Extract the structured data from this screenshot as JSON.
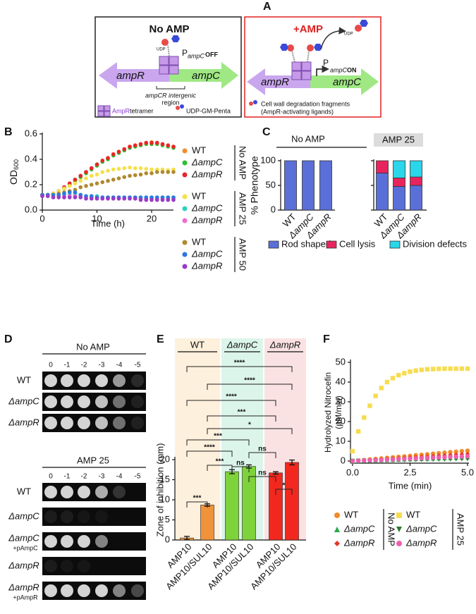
{
  "panel_labels": [
    "A",
    "B",
    "C",
    "D",
    "E",
    "F"
  ],
  "diagram": {
    "left": {
      "title": "No AMP",
      "gene_r": "ampR",
      "gene_c": "ampC",
      "promoter": "P",
      "promoter_sub": "ampC",
      "state": "OFF",
      "udp": "UDP",
      "region": "ampCR intergenic",
      "region2": "region"
    },
    "right": {
      "title": "+AMP",
      "gene_r": "ampR",
      "gene_c": "ampC",
      "promoter": "P",
      "promoter_sub": "ampC",
      "state": "ON",
      "udp": "UDP"
    },
    "legend": {
      "tetramer_name": "AmpR",
      "tetramer": "tetramer",
      "ligand": "UDP-GM-Penta",
      "fragments": "Cell wall degradation fragments",
      "fragments2": "(AmpR-activating ligands)"
    }
  },
  "spot_assay": {
    "top": {
      "title": "No AMP",
      "dilutions": [
        "0",
        "-1",
        "-2",
        "-3",
        "-4",
        "-5"
      ],
      "rows": [
        {
          "name": "WT"
        },
        {
          "name": "ΔampC"
        },
        {
          "name": "ΔampR"
        }
      ]
    },
    "bottom": {
      "title": "AMP 25",
      "dilutions": [
        "0",
        "-1",
        "-2",
        "-3",
        "-4",
        "-5"
      ],
      "rows": [
        {
          "name": "WT"
        },
        {
          "name": "ΔampC"
        },
        {
          "name": "ΔampC",
          "note": "+pAmpC"
        },
        {
          "name": "ΔampR"
        },
        {
          "name": "ΔampR",
          "note": "+pAmpR"
        }
      ]
    }
  },
  "chart_data": [
    {
      "type": "scatter",
      "x_label": "Time (h)",
      "y_label": {
        "main": "OD",
        "sub": "600"
      },
      "xlim": [
        0,
        24
      ],
      "xticks": [
        0,
        10,
        20
      ],
      "ylim": [
        0,
        0.6
      ],
      "yticks": [
        {
          "value": 0,
          "label": "0.0"
        },
        0.2,
        0.4,
        0.6
      ],
      "legend_groups": [
        "No AMP",
        "AMP 25",
        "AMP 50"
      ],
      "x": [
        0,
        1,
        2,
        3,
        4,
        5,
        6,
        7,
        8,
        9,
        10,
        11,
        12,
        13,
        14,
        15,
        16,
        17,
        18,
        19,
        20,
        21,
        22,
        23,
        24
      ],
      "series": [
        {
          "name": "WT",
          "color": "#f28c28",
          "values": [
            0.12,
            0.12,
            0.13,
            0.15,
            0.18,
            0.21,
            0.24,
            0.27,
            0.3,
            0.33,
            0.36,
            0.39,
            0.41,
            0.44,
            0.46,
            0.48,
            0.5,
            0.51,
            0.52,
            0.53,
            0.535,
            0.53,
            0.52,
            0.51,
            0.5
          ]
        },
        {
          "name": "ΔampC",
          "color": "#2fbf2f",
          "values": [
            0.12,
            0.12,
            0.13,
            0.15,
            0.17,
            0.2,
            0.23,
            0.26,
            0.29,
            0.32,
            0.35,
            0.38,
            0.4,
            0.43,
            0.45,
            0.47,
            0.49,
            0.5,
            0.51,
            0.52,
            0.52,
            0.52,
            0.51,
            0.5,
            0.49
          ]
        },
        {
          "name": "ΔampR",
          "color": "#e8262a",
          "values": [
            0.12,
            0.12,
            0.13,
            0.15,
            0.18,
            0.21,
            0.24,
            0.27,
            0.3,
            0.33,
            0.36,
            0.39,
            0.41,
            0.44,
            0.46,
            0.48,
            0.5,
            0.51,
            0.52,
            0.53,
            0.53,
            0.53,
            0.52,
            0.51,
            0.5
          ]
        },
        {
          "name": "WT",
          "color": "#f5e04a",
          "values": [
            0.12,
            0.12,
            0.13,
            0.15,
            0.17,
            0.19,
            0.21,
            0.23,
            0.25,
            0.27,
            0.28,
            0.3,
            0.31,
            0.32,
            0.325,
            0.33,
            0.335,
            0.33,
            0.33,
            0.325,
            0.32,
            0.32,
            0.32,
            0.315,
            0.32
          ]
        },
        {
          "name": "ΔampC",
          "color": "#2fd0c0",
          "values": [
            0.12,
            0.12,
            0.12,
            0.12,
            0.12,
            0.12,
            0.13,
            0.12,
            0.11,
            0.11,
            0.11,
            0.1,
            0.1,
            0.1,
            0.1,
            0.1,
            0.1,
            0.1,
            0.1,
            0.1,
            0.1,
            0.1,
            0.1,
            0.1,
            0.1
          ]
        },
        {
          "name": "ΔampR",
          "color": "#f06ad0",
          "values": [
            0.11,
            0.11,
            0.11,
            0.11,
            0.11,
            0.11,
            0.11,
            0.11,
            0.1,
            0.1,
            0.1,
            0.1,
            0.1,
            0.1,
            0.1,
            0.1,
            0.1,
            0.09,
            0.09,
            0.09,
            0.09,
            0.09,
            0.09,
            0.09,
            0.09
          ]
        },
        {
          "name": "WT",
          "color": "#b08a30",
          "values": [
            0.12,
            0.12,
            0.12,
            0.13,
            0.14,
            0.15,
            0.16,
            0.18,
            0.19,
            0.2,
            0.21,
            0.22,
            0.23,
            0.24,
            0.25,
            0.26,
            0.27,
            0.275,
            0.28,
            0.29,
            0.29,
            0.3,
            0.3,
            0.3,
            0.3
          ]
        },
        {
          "name": "ΔampC",
          "color": "#2a7ae0",
          "values": [
            0.12,
            0.12,
            0.12,
            0.12,
            0.13,
            0.14,
            0.14,
            0.12,
            0.11,
            0.11,
            0.1,
            0.1,
            0.1,
            0.1,
            0.1,
            0.1,
            0.1,
            0.1,
            0.1,
            0.1,
            0.1,
            0.1,
            0.1,
            0.1,
            0.1
          ]
        },
        {
          "name": "ΔampR",
          "color": "#9a3ac8",
          "values": [
            0.11,
            0.11,
            0.1,
            0.1,
            0.1,
            0.1,
            0.1,
            0.1,
            0.09,
            0.09,
            0.09,
            0.09,
            0.09,
            0.09,
            0.09,
            0.09,
            0.09,
            0.09,
            0.08,
            0.08,
            0.08,
            0.08,
            0.08,
            0.08,
            0.08
          ]
        }
      ]
    },
    {
      "type": "bar",
      "stacked": true,
      "y_label": "% Phenotype",
      "facets": [
        "No AMP",
        "AMP 25"
      ],
      "categories": [
        "WT",
        "ΔampC",
        "ΔampR",
        "WT",
        "ΔampC",
        "ΔampR"
      ],
      "ylim": [
        0,
        100
      ],
      "yticks": [
        0,
        50,
        100
      ],
      "series": [
        {
          "name": "Rod shaped",
          "color": "#5a6fd8",
          "values": [
            100,
            100,
            100,
            75,
            48,
            50
          ]
        },
        {
          "name": "Cell lysis",
          "color": "#e8245c",
          "values": [
            0,
            0,
            0,
            25,
            17,
            17
          ]
        },
        {
          "name": "Division defects",
          "color": "#2ad6ea",
          "values": [
            0,
            0,
            0,
            0,
            35,
            33
          ]
        }
      ]
    },
    {
      "type": "bar",
      "y_label": "Zone of inhibition (mm)",
      "groups": [
        "WT",
        "ΔampC",
        "ΔampR"
      ],
      "categories": [
        "AMP10",
        "AMP10/SUL10",
        "AMP10",
        "AMP10/SUL10",
        "AMP10",
        "AMP10/SUL10"
      ],
      "values": [
        0.5,
        8.7,
        17,
        18.3,
        16.7,
        19.3
      ],
      "errors": [
        0.4,
        0.3,
        0.5,
        0.4,
        0.3,
        0.6
      ],
      "colors": [
        "#f0933a",
        "#f0933a",
        "#7ed23a",
        "#7ed23a",
        "#f2281e",
        "#f2281e"
      ],
      "ylim": [
        0,
        20
      ],
      "yticks": [
        0,
        5,
        10,
        15,
        20
      ],
      "annotations": [
        "****",
        "****",
        "****",
        "***",
        "*",
        "***",
        "****",
        "ns",
        "***",
        "ns",
        "ns",
        "*",
        "***"
      ]
    },
    {
      "type": "line",
      "x_label": "Time (min)",
      "y_label": [
        "Hydrolyzed Nitrocefin",
        "(µM/min)"
      ],
      "xlim": [
        0,
        5
      ],
      "xticks": [
        {
          "value": 0,
          "label": "0.0"
        },
        2.5,
        {
          "value": 5,
          "label": "5.0"
        }
      ],
      "ylim": [
        0,
        50
      ],
      "yticks": [
        0,
        10,
        20,
        30,
        40,
        50
      ],
      "legend_groups": [
        "No AMP",
        "AMP 25"
      ],
      "x": [
        0,
        0.25,
        0.5,
        0.75,
        1,
        1.25,
        1.5,
        1.75,
        2,
        2.25,
        2.5,
        2.75,
        3,
        3.25,
        3.5,
        3.75,
        4,
        4.25,
        4.5,
        4.75,
        5
      ],
      "series": [
        {
          "name": "WT",
          "color": "#f08a2a",
          "marker": "circle",
          "values": [
            0,
            0.26,
            0.5,
            0.8,
            1.05,
            1.3,
            1.6,
            1.85,
            2.1,
            2.35,
            2.6,
            2.9,
            3.15,
            3.4,
            3.7,
            3.95,
            4.2,
            4.5,
            4.7,
            5.0,
            5.2
          ]
        },
        {
          "name": "ΔampC",
          "color": "#2aa84a",
          "marker": "triangle",
          "values": [
            0,
            0.1,
            0.2,
            0.3,
            0.4,
            0.5,
            0.6,
            0.7,
            0.8,
            0.9,
            1,
            1.1,
            1.2,
            1.3,
            1.4,
            1.5,
            1.6,
            1.7,
            1.8,
            1.9,
            2
          ]
        },
        {
          "name": "ΔampR",
          "color": "#e8352a",
          "marker": "diamond",
          "values": [
            0,
            0.18,
            0.36,
            0.54,
            0.72,
            0.9,
            1.08,
            1.26,
            1.44,
            1.62,
            1.8,
            1.98,
            2.16,
            2.34,
            2.52,
            2.7,
            2.88,
            3.06,
            3.24,
            3.42,
            3.6
          ]
        },
        {
          "name": "WT",
          "color": "#f7dc50",
          "marker": "square",
          "values": [
            5,
            15,
            22,
            28,
            33,
            37,
            40,
            42,
            43.5,
            44.5,
            45.3,
            45.8,
            46.2,
            46.5,
            46.6,
            46.7,
            46.8,
            46.8,
            46.8,
            46.8,
            46.8
          ]
        },
        {
          "name": "ΔampC",
          "color": "#2a7a2a",
          "marker": "triangle-down",
          "values": [
            0,
            0.05,
            0.1,
            0.15,
            0.2,
            0.25,
            0.3,
            0.35,
            0.4,
            0.45,
            0.5,
            0.55,
            0.6,
            0.65,
            0.7,
            0.75,
            0.8,
            0.85,
            0.9,
            0.95,
            1
          ]
        },
        {
          "name": "ΔampR",
          "color": "#ee5fb0",
          "marker": "circle",
          "values": [
            0,
            0.12,
            0.24,
            0.36,
            0.48,
            0.6,
            0.72,
            0.84,
            0.96,
            1.08,
            1.2,
            1.32,
            1.44,
            1.56,
            1.68,
            1.8,
            1.92,
            2.04,
            2.16,
            2.28,
            2.4
          ]
        }
      ]
    }
  ]
}
